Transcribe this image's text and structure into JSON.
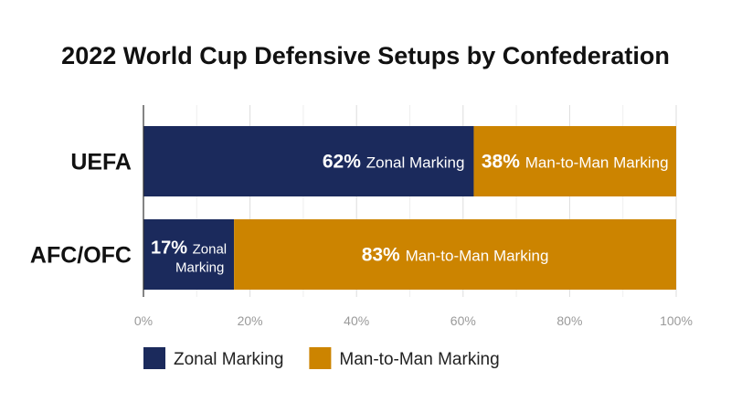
{
  "chart_data": {
    "type": "bar",
    "orientation": "horizontal",
    "stacked": true,
    "title": "2022 World Cup Defensive Setups by Confederation",
    "categories": [
      "UEFA",
      "AFC/OFC"
    ],
    "series": [
      {
        "name": "Zonal Marking",
        "color": "#1b2a5c",
        "values": [
          62,
          17
        ],
        "value_labels": [
          "62%",
          "17%"
        ],
        "bar_labels": [
          "Zonal Marking",
          "Zonal Marking"
        ]
      },
      {
        "name": "Man-to-Man Marking",
        "color": "#cc8400",
        "values": [
          38,
          83
        ],
        "value_labels": [
          "38%",
          "83%"
        ],
        "bar_labels": [
          "Man-to-Man Marking",
          "Man-to-Man Marking"
        ]
      }
    ],
    "xlim": [
      0,
      100
    ],
    "xticks": [
      "0%",
      "20%",
      "40%",
      "60%",
      "80%",
      "100%"
    ],
    "grid": true,
    "legend_position": "bottom-left"
  }
}
